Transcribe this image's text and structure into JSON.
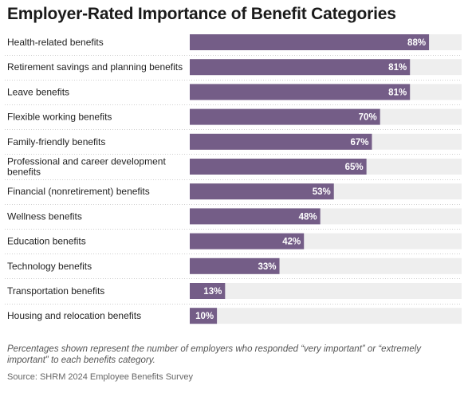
{
  "chart_data": {
    "type": "bar",
    "orientation": "horizontal",
    "title": "Employer-Rated Importance of Benefit Categories",
    "categories": [
      "Health-related benefits",
      "Retirement savings and planning benefits",
      "Leave benefits",
      "Flexible working benefits",
      "Family-friendly benefits",
      "Professional and career development benefits",
      "Financial (nonretirement) benefits",
      "Wellness benefits",
      "Education benefits",
      "Technology benefits",
      "Transportation benefits",
      "Housing and relocation benefits"
    ],
    "values": [
      88,
      81,
      81,
      70,
      67,
      65,
      53,
      48,
      42,
      33,
      13,
      10
    ],
    "value_labels": [
      "88%",
      "81%",
      "81%",
      "70%",
      "67%",
      "65%",
      "53%",
      "48%",
      "42%",
      "33%",
      "13%",
      "10%"
    ],
    "xlim": [
      0,
      100
    ],
    "bar_color": "#745d87",
    "track_color": "#eeeeee",
    "label_color": "#ffffff",
    "grid": false,
    "legend": "none"
  },
  "note": "Percentages shown represent the number of employers who responded “very important” or “extremely important” to each benefits category.",
  "source": "Source: SHRM 2024 Employee Benefits Survey"
}
